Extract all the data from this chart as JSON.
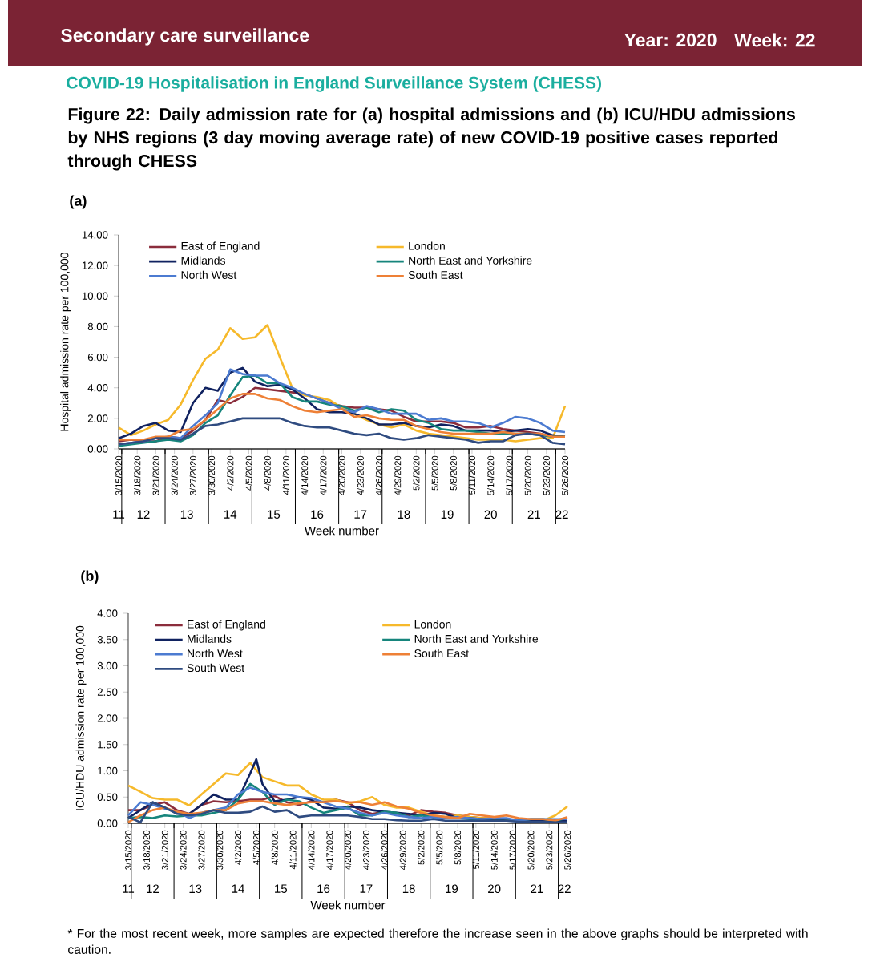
{
  "chart_data": [
    {
      "type": "line",
      "title": "Figure 22: Daily admission rate for (a) hospital admissions and (b) ICU/HDU admissions by NHS regions (3 day moving average rate) of new COVID-19 positive cases reported through CHESS",
      "subtitle": "COVID-19 Hospitalisation in England Surveillance System (CHESS)",
      "annotations": [
        "Secondary care surveillance",
        "Year: 2020",
        "Week: 22",
        "(a)"
      ],
      "xlabel": "Week number",
      "ylabel": "Hospital admission rate per 100,000",
      "legend": "top",
      "x": [
        "2020-03-15",
        "2020-03-17",
        "2020-03-19",
        "2020-03-21",
        "2020-03-23",
        "2020-03-25",
        "2020-03-27",
        "2020-03-29",
        "2020-03-31",
        "2020-04-02",
        "2020-04-04",
        "2020-04-06",
        "2020-04-08",
        "2020-04-10",
        "2020-04-12",
        "2020-04-14",
        "2020-04-16",
        "2020-04-18",
        "2020-04-20",
        "2020-04-22",
        "2020-04-24",
        "2020-04-26",
        "2020-04-28",
        "2020-04-30",
        "2020-05-02",
        "2020-05-04",
        "2020-05-06",
        "2020-05-08",
        "2020-05-10",
        "2020-05-12",
        "2020-05-14",
        "2020-05-16",
        "2020-05-18",
        "2020-05-20",
        "2020-05-22",
        "2020-05-24",
        "2020-05-26"
      ],
      "xlim": [
        "2020-03-15",
        "2020-05-26"
      ],
      "xticks": [
        {
          "value": "2020-03-15",
          "label": "3/15/2020"
        },
        {
          "value": "2020-03-18",
          "label": "3/18/2020"
        },
        {
          "value": "2020-03-21",
          "label": "3/21/2020"
        },
        {
          "value": "2020-03-24",
          "label": "3/24/2020"
        },
        {
          "value": "2020-03-27",
          "label": "3/27/2020"
        },
        {
          "value": "2020-03-30",
          "label": "3/30/2020"
        },
        {
          "value": "2020-04-02",
          "label": "4/2/2020"
        },
        {
          "value": "2020-04-05",
          "label": "4/5/2020"
        },
        {
          "value": "2020-04-08",
          "label": "4/8/2020"
        },
        {
          "value": "2020-04-11",
          "label": "4/11/2020"
        },
        {
          "value": "2020-04-14",
          "label": "4/14/2020"
        },
        {
          "value": "2020-04-17",
          "label": "4/17/2020"
        },
        {
          "value": "2020-04-20",
          "label": "4/20/2020"
        },
        {
          "value": "2020-04-23",
          "label": "4/23/2020"
        },
        {
          "value": "2020-04-26",
          "label": "4/26/2020"
        },
        {
          "value": "2020-04-29",
          "label": "4/29/2020"
        },
        {
          "value": "2020-05-02",
          "label": "5/2/2020"
        },
        {
          "value": "2020-05-05",
          "label": "5/5/2020"
        },
        {
          "value": "2020-05-08",
          "label": "5/8/2020"
        },
        {
          "value": "2020-05-11",
          "label": "5/11/2020"
        },
        {
          "value": "2020-05-14",
          "label": "5/14/2020"
        },
        {
          "value": "2020-05-17",
          "label": "5/17/2020"
        },
        {
          "value": "2020-05-20",
          "label": "5/20/2020"
        },
        {
          "value": "2020-05-23",
          "label": "5/23/2020"
        },
        {
          "value": "2020-05-26",
          "label": "5/26/2020"
        }
      ],
      "x2lim": [
        "2020-03-15",
        "2020-05-26"
      ],
      "x2ticks": [
        {
          "value": "2020-03-15",
          "label": "11"
        },
        {
          "value": "2020-03-15T12:00",
          "label": null
        },
        {
          "value": "2020-03-19",
          "label": "12"
        },
        {
          "value": "2020-03-22T12:00",
          "label": null
        },
        {
          "value": "2020-03-26",
          "label": "13"
        },
        {
          "value": "2020-03-29T12:00",
          "label": null
        },
        {
          "value": "2020-04-02",
          "label": "14"
        },
        {
          "value": "2020-04-05T12:00",
          "label": null
        },
        {
          "value": "2020-04-09",
          "label": "15"
        },
        {
          "value": "2020-04-12T12:00",
          "label": null
        },
        {
          "value": "2020-04-16",
          "label": "16"
        },
        {
          "value": "2020-04-19T12:00",
          "label": null
        },
        {
          "value": "2020-04-23",
          "label": "17"
        },
        {
          "value": "2020-04-26T12:00",
          "label": null
        },
        {
          "value": "2020-04-30",
          "label": "18"
        },
        {
          "value": "2020-05-03T12:00",
          "label": null
        },
        {
          "value": "2020-05-07",
          "label": "19"
        },
        {
          "value": "2020-05-10T12:00",
          "label": null
        },
        {
          "value": "2020-05-14",
          "label": "20"
        },
        {
          "value": "2020-05-17T12:00",
          "label": null
        },
        {
          "value": "2020-05-21",
          "label": "21"
        },
        {
          "value": "2020-05-24T12:00",
          "label": null
        },
        {
          "value": "2020-05-25T12:00",
          "label": "22"
        }
      ],
      "ylim": [
        0,
        14
      ],
      "yticks": [
        {
          "value": 0,
          "label": "0.00"
        },
        {
          "value": 2,
          "label": "2.00"
        },
        {
          "value": 4,
          "label": "4.00"
        },
        {
          "value": 6,
          "label": "6.00"
        },
        {
          "value": 8,
          "label": "8.00"
        },
        {
          "value": 10,
          "label": "10.00"
        },
        {
          "value": 12,
          "label": "12.00"
        },
        {
          "value": 14,
          "label": "14.00"
        }
      ],
      "series": [
        {
          "name": "East of England",
          "color": "#8b2d3c",
          "values": [
            0.5,
            0.6,
            0.5,
            0.5,
            0.8,
            0.7,
            1.2,
            1.9,
            3.2,
            3.0,
            3.4,
            4.0,
            3.9,
            3.8,
            3.7,
            3.6,
            3.3,
            3.0,
            2.8,
            2.7,
            2.7,
            2.6,
            2.5,
            2.1,
            1.8,
            1.8,
            1.8,
            1.7,
            1.4,
            1.4,
            1.5,
            1.3,
            1.2,
            1.1,
            1.0,
            0.8,
            0.8
          ]
        },
        {
          "name": "London",
          "color": "#f6b92b",
          "values": [
            1.4,
            0.9,
            1.2,
            1.6,
            1.9,
            2.9,
            4.5,
            5.9,
            6.5,
            7.9,
            7.2,
            7.3,
            8.1,
            6.0,
            4.0,
            3.5,
            3.4,
            3.2,
            2.7,
            2.3,
            1.9,
            1.6,
            1.4,
            1.6,
            1.2,
            1.0,
            0.9,
            0.8,
            0.7,
            0.6,
            0.6,
            0.6,
            0.5,
            0.6,
            0.7,
            0.7,
            2.8
          ]
        },
        {
          "name": "Midlands",
          "color": "#102260",
          "values": [
            0.7,
            1.0,
            1.5,
            1.7,
            1.2,
            1.1,
            3.0,
            4.0,
            3.8,
            5.0,
            5.3,
            4.4,
            4.1,
            4.2,
            3.9,
            3.3,
            2.6,
            2.4,
            2.4,
            2.3,
            2.0,
            1.6,
            1.6,
            1.7,
            1.5,
            1.4,
            1.6,
            1.5,
            1.2,
            1.2,
            1.2,
            1.1,
            1.2,
            1.3,
            1.2,
            0.9,
            0.8
          ]
        },
        {
          "name": "North East and Yorkshire",
          "color": "#16857c",
          "values": [
            0.2,
            0.3,
            0.4,
            0.5,
            0.6,
            0.5,
            0.9,
            1.7,
            2.2,
            3.5,
            4.7,
            4.8,
            4.3,
            4.3,
            3.4,
            3.1,
            3.1,
            2.9,
            2.8,
            2.5,
            2.7,
            2.4,
            2.6,
            2.5,
            1.9,
            1.7,
            1.3,
            1.2,
            1.2,
            1.1,
            1.0,
            1.0,
            1.0,
            1.0,
            0.9,
            0.8,
            0.8
          ]
        },
        {
          "name": "North West",
          "color": "#4c7bd1",
          "values": [
            0.3,
            0.4,
            0.5,
            0.7,
            0.8,
            0.7,
            1.5,
            2.2,
            3.0,
            5.2,
            4.9,
            4.8,
            4.8,
            4.3,
            4.0,
            3.6,
            3.3,
            3.0,
            2.6,
            2.4,
            2.8,
            2.6,
            2.3,
            2.3,
            2.3,
            1.9,
            2.0,
            1.8,
            1.8,
            1.7,
            1.4,
            1.7,
            2.1,
            2.0,
            1.7,
            1.2,
            1.1
          ]
        },
        {
          "name": "South East",
          "color": "#ee8036",
          "values": [
            0.6,
            0.6,
            0.6,
            0.8,
            0.8,
            1.2,
            1.3,
            1.9,
            2.6,
            3.3,
            3.6,
            3.6,
            3.3,
            3.2,
            2.8,
            2.5,
            2.4,
            2.5,
            2.6,
            2.1,
            2.2,
            2.0,
            1.9,
            1.9,
            1.5,
            1.3,
            1.1,
            1.0,
            1.0,
            1.0,
            1.0,
            1.1,
            1.0,
            1.0,
            1.0,
            0.8,
            0.8
          ]
        },
        {
          "color": "#2f4b80",
          "values": [
            0.3,
            0.4,
            0.5,
            0.7,
            0.7,
            0.6,
            1.0,
            1.5,
            1.6,
            1.8,
            2.0,
            2.0,
            2.0,
            2.0,
            1.7,
            1.5,
            1.4,
            1.4,
            1.2,
            1.0,
            0.9,
            1.0,
            0.7,
            0.6,
            0.7,
            0.9,
            0.8,
            0.7,
            0.6,
            0.4,
            0.5,
            0.5,
            0.9,
            1.0,
            0.9,
            0.4,
            0.3
          ]
        }
      ]
    },
    {
      "type": "line",
      "annotations": [
        "(b)",
        "* For the most recent week, more samples are expected therefore the increase seen in the above graphs should be interpreted with caution."
      ],
      "xlabel": "Week number",
      "ylabel": "ICU/HDU admission rate per 100,000",
      "legend": "top",
      "x": [
        "2020-03-15",
        "2020-03-17",
        "2020-03-19",
        "2020-03-21",
        "2020-03-23",
        "2020-03-25",
        "2020-03-27",
        "2020-03-29",
        "2020-03-31",
        "2020-04-02",
        "2020-04-04",
        "2020-04-06",
        "2020-04-08",
        "2020-04-10",
        "2020-04-12",
        "2020-04-14",
        "2020-04-16",
        "2020-04-18",
        "2020-04-20",
        "2020-04-22",
        "2020-04-24",
        "2020-04-26",
        "2020-04-28",
        "2020-04-30",
        "2020-05-02",
        "2020-05-04",
        "2020-05-06",
        "2020-05-08",
        "2020-05-10",
        "2020-05-12",
        "2020-05-14",
        "2020-05-16",
        "2020-05-18",
        "2020-05-20",
        "2020-05-22",
        "2020-05-24",
        "2020-05-26"
      ],
      "xlim": [
        "2020-03-15",
        "2020-05-26"
      ],
      "xticks": [
        {
          "value": "2020-03-15",
          "label": "3/15/2020"
        },
        {
          "value": "2020-03-18",
          "label": "3/18/2020"
        },
        {
          "value": "2020-03-21",
          "label": "3/21/2020"
        },
        {
          "value": "2020-03-24",
          "label": "3/24/2020"
        },
        {
          "value": "2020-03-27",
          "label": "3/27/2020"
        },
        {
          "value": "2020-03-30",
          "label": "3/30/2020"
        },
        {
          "value": "2020-04-02",
          "label": "4/2/2020"
        },
        {
          "value": "2020-04-05",
          "label": "4/5/2020"
        },
        {
          "value": "2020-04-08",
          "label": "4/8/2020"
        },
        {
          "value": "2020-04-11",
          "label": "4/11/2020"
        },
        {
          "value": "2020-04-14",
          "label": "4/14/2020"
        },
        {
          "value": "2020-04-17",
          "label": "4/17/2020"
        },
        {
          "value": "2020-04-20",
          "label": "4/20/2020"
        },
        {
          "value": "2020-04-23",
          "label": "4/23/2020"
        },
        {
          "value": "2020-04-26",
          "label": "4/26/2020"
        },
        {
          "value": "2020-04-29",
          "label": "4/29/2020"
        },
        {
          "value": "2020-05-02",
          "label": "5/2/2020"
        },
        {
          "value": "2020-05-05",
          "label": "5/5/2020"
        },
        {
          "value": "2020-05-08",
          "label": "5/8/2020"
        },
        {
          "value": "2020-05-11",
          "label": "5/11/2020"
        },
        {
          "value": "2020-05-14",
          "label": "5/14/2020"
        },
        {
          "value": "2020-05-17",
          "label": "5/17/2020"
        },
        {
          "value": "2020-05-20",
          "label": "5/20/2020"
        },
        {
          "value": "2020-05-23",
          "label": "5/23/2020"
        },
        {
          "value": "2020-05-26",
          "label": "5/26/2020"
        }
      ],
      "x2lim": [
        "2020-03-15",
        "2020-05-26"
      ],
      "x2ticks": [
        {
          "value": "2020-03-15",
          "label": "11"
        },
        {
          "value": "2020-03-15T12:00",
          "label": null
        },
        {
          "value": "2020-03-19",
          "label": "12"
        },
        {
          "value": "2020-03-22T12:00",
          "label": null
        },
        {
          "value": "2020-03-26",
          "label": "13"
        },
        {
          "value": "2020-03-29T12:00",
          "label": null
        },
        {
          "value": "2020-04-02",
          "label": "14"
        },
        {
          "value": "2020-04-05T12:00",
          "label": null
        },
        {
          "value": "2020-04-09",
          "label": "15"
        },
        {
          "value": "2020-04-12T12:00",
          "label": null
        },
        {
          "value": "2020-04-16",
          "label": "16"
        },
        {
          "value": "2020-04-19T12:00",
          "label": null
        },
        {
          "value": "2020-04-23",
          "label": "17"
        },
        {
          "value": "2020-04-26T12:00",
          "label": null
        },
        {
          "value": "2020-04-30",
          "label": "18"
        },
        {
          "value": "2020-05-03T12:00",
          "label": null
        },
        {
          "value": "2020-05-07",
          "label": "19"
        },
        {
          "value": "2020-05-10T12:00",
          "label": null
        },
        {
          "value": "2020-05-14",
          "label": "20"
        },
        {
          "value": "2020-05-17T12:00",
          "label": null
        },
        {
          "value": "2020-05-21",
          "label": "21"
        },
        {
          "value": "2020-05-24T12:00",
          "label": null
        },
        {
          "value": "2020-05-25T12:00",
          "label": "22"
        }
      ],
      "ylim": [
        0,
        4
      ],
      "yticks": [
        {
          "value": 0,
          "label": "0.00"
        },
        {
          "value": 0.5,
          "label": "0.50"
        },
        {
          "value": 1,
          "label": "1.00"
        },
        {
          "value": 1.5,
          "label": "1.50"
        },
        {
          "value": 2,
          "label": "2.00"
        },
        {
          "value": 2.5,
          "label": "2.50"
        },
        {
          "value": 3,
          "label": "3.00"
        },
        {
          "value": 3.5,
          "label": "3.50"
        },
        {
          "value": 4,
          "label": "4.00"
        }
      ],
      "series": [
        {
          "name": "East of England",
          "color": "#8b2d3c",
          "values": [
            0.25,
            0.25,
            0.35,
            0.4,
            0.25,
            0.18,
            0.35,
            0.42,
            0.4,
            0.42,
            0.45,
            0.45,
            0.52,
            0.4,
            0.35,
            0.42,
            0.4,
            0.45,
            0.4,
            0.25,
            0.18,
            0.22,
            0.18,
            0.15,
            0.25,
            0.22,
            0.2,
            0.15,
            0.12,
            0.1,
            0.1,
            0.08,
            0.05,
            0.05,
            0.05,
            0.05,
            0.1
          ]
        },
        {
          "name": "London",
          "color": "#f6b92b",
          "values": [
            0.72,
            0.6,
            0.48,
            0.45,
            0.45,
            0.34,
            0.55,
            0.75,
            0.95,
            0.92,
            1.15,
            0.88,
            0.8,
            0.72,
            0.72,
            0.55,
            0.45,
            0.45,
            0.38,
            0.42,
            0.5,
            0.35,
            0.3,
            0.3,
            0.22,
            0.15,
            0.12,
            0.15,
            0.12,
            0.1,
            0.1,
            0.08,
            0.05,
            0.05,
            0.05,
            0.15,
            0.32
          ]
        },
        {
          "name": "Midlands",
          "color": "#102260",
          "x": [
            "2020-03-15",
            "2020-03-17",
            "2020-03-19",
            "2020-03-21",
            "2020-03-23",
            "2020-03-25",
            "2020-03-27",
            "2020-03-29",
            "2020-03-31",
            "2020-04-02",
            "2020-04-04",
            "2020-04-05",
            "2020-04-06",
            "2020-04-08",
            "2020-04-10",
            "2020-04-12",
            "2020-04-14",
            "2020-04-16",
            "2020-04-18",
            "2020-04-20",
            "2020-04-22",
            "2020-04-24",
            "2020-04-26",
            "2020-04-28",
            "2020-04-30",
            "2020-05-02",
            "2020-05-04",
            "2020-05-06",
            "2020-05-08",
            "2020-05-10",
            "2020-05-12",
            "2020-05-14",
            "2020-05-16",
            "2020-05-18",
            "2020-05-20",
            "2020-05-22",
            "2020-05-24",
            "2020-05-26"
          ],
          "values": [
            0.1,
            0.25,
            0.4,
            0.3,
            0.2,
            0.18,
            0.35,
            0.55,
            0.45,
            0.45,
            0.95,
            1.22,
            0.75,
            0.42,
            0.45,
            0.5,
            0.45,
            0.3,
            0.28,
            0.32,
            0.3,
            0.25,
            0.22,
            0.2,
            0.18,
            0.15,
            0.2,
            0.18,
            0.1,
            0.1,
            0.08,
            0.08,
            0.05,
            0.05,
            0.05,
            0.05,
            0.05,
            0.05
          ]
        },
        {
          "name": "North East and Yorkshire",
          "color": "#16857c",
          "values": [
            0.1,
            0.12,
            0.1,
            0.15,
            0.13,
            0.15,
            0.15,
            0.2,
            0.25,
            0.45,
            0.75,
            0.6,
            0.35,
            0.45,
            0.42,
            0.3,
            0.2,
            0.25,
            0.3,
            0.15,
            0.15,
            0.22,
            0.2,
            0.12,
            0.15,
            0.12,
            0.1,
            0.1,
            0.08,
            0.05,
            0.05,
            0.05,
            0.05,
            0.08,
            0.08,
            0.05,
            0.1
          ]
        },
        {
          "name": "North West",
          "color": "#4c7bd1",
          "values": [
            0.15,
            0.4,
            0.35,
            0.28,
            0.22,
            0.1,
            0.2,
            0.25,
            0.3,
            0.55,
            0.68,
            0.6,
            0.55,
            0.55,
            0.5,
            0.48,
            0.4,
            0.32,
            0.28,
            0.2,
            0.15,
            0.2,
            0.15,
            0.12,
            0.1,
            0.12,
            0.1,
            0.12,
            0.1,
            0.08,
            0.1,
            0.1,
            0.05,
            0.08,
            0.08,
            0.08,
            0.08
          ]
        },
        {
          "name": "South East",
          "color": "#ee8036",
          "values": [
            0.02,
            0.15,
            0.25,
            0.3,
            0.22,
            0.18,
            0.2,
            0.25,
            0.25,
            0.38,
            0.42,
            0.42,
            0.38,
            0.35,
            0.38,
            0.4,
            0.4,
            0.42,
            0.4,
            0.4,
            0.35,
            0.4,
            0.32,
            0.28,
            0.2,
            0.15,
            0.12,
            0.1,
            0.18,
            0.15,
            0.12,
            0.15,
            0.1,
            0.08,
            0.08,
            0.05,
            0.12
          ]
        },
        {
          "name": "South West",
          "color": "#2f4b80",
          "values": [
            0.12,
            0.02,
            0.4,
            0.3,
            0.18,
            0.15,
            0.18,
            0.25,
            0.2,
            0.2,
            0.22,
            0.32,
            0.22,
            0.25,
            0.12,
            0.15,
            0.15,
            0.15,
            0.15,
            0.12,
            0.08,
            0.08,
            0.06,
            0.05,
            0.05,
            0.08,
            0.05,
            0.05,
            0.05,
            0.05,
            0.05,
            0.05,
            0.03,
            0.03,
            0.03,
            0.02,
            0.02
          ]
        }
      ]
    }
  ]
}
